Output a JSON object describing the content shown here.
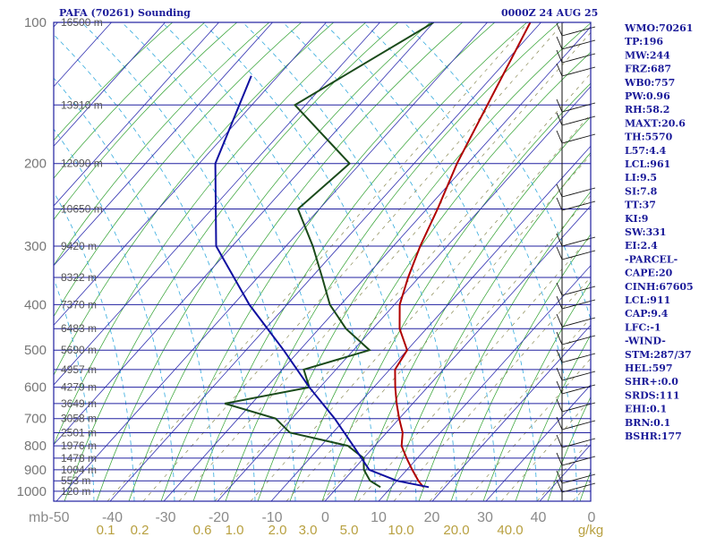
{
  "title_left": "PAFA (70261) Sounding",
  "title_right": "0000Z 24 AUG 25",
  "indices": [
    "WMO:70261",
    "TP:196",
    "MW:244",
    "FRZ:687",
    "WB0:757",
    "PW:0.96",
    "RH:58.2",
    "MAXT:20.6",
    "TH:5570",
    "L57:4.4",
    "LCL:961",
    "LI:9.5",
    "SI:7.8",
    "TT:37",
    "KI:9",
    "SW:331",
    "EI:2.4",
    "-PARCEL-",
    "CAPE:20",
    "CINH:67605",
    "LCL:911",
    "CAP:9.4",
    "LFC:-1",
    "-WIND-",
    "STM:287/37",
    "HEL:597",
    "SHR+:0.0",
    "SRDS:111",
    "EHI:0.1",
    "BRN:0.1",
    "BSHR:177"
  ],
  "chart_data": {
    "type": "line",
    "pressure_levels": [
      {
        "p": 100,
        "label": "100",
        "height": "16500 m"
      },
      {
        "p": 150,
        "label": "",
        "height": "13910 m"
      },
      {
        "p": 200,
        "label": "200",
        "height": "12090 m"
      },
      {
        "p": 250,
        "label": "",
        "height": "10650 m"
      },
      {
        "p": 300,
        "label": "300",
        "height": "9420 m"
      },
      {
        "p": 350,
        "label": "",
        "height": "8322 m"
      },
      {
        "p": 400,
        "label": "400",
        "height": "7370 m"
      },
      {
        "p": 450,
        "label": "",
        "height": "6483 m"
      },
      {
        "p": 500,
        "label": "500",
        "height": "5690 m"
      },
      {
        "p": 550,
        "label": "",
        "height": "4957 m"
      },
      {
        "p": 600,
        "label": "600",
        "height": "4279 m"
      },
      {
        "p": 650,
        "label": "",
        "height": "3649 m"
      },
      {
        "p": 700,
        "label": "700",
        "height": "3058 m"
      },
      {
        "p": 750,
        "label": "",
        "height": "2501 m"
      },
      {
        "p": 800,
        "label": "800",
        "height": "1976 m"
      },
      {
        "p": 850,
        "label": "",
        "height": "1478 m"
      },
      {
        "p": 900,
        "label": "900",
        "height": "1004 m"
      },
      {
        "p": 950,
        "label": "",
        "height": "553 m"
      },
      {
        "p": 1000,
        "label": "1000",
        "height": "120 m"
      }
    ],
    "x_unit_label": "mb",
    "temperature_ticks": [
      -50,
      -40,
      -30,
      -20,
      -10,
      0,
      10,
      20,
      30,
      40,
      0
    ],
    "mixing_ratio_labels": [
      "0.1",
      "0.2",
      "0.6",
      "1.0",
      "2.0",
      "3.0",
      "5.0",
      "10.0",
      "20.0",
      "40.0"
    ],
    "mixing_ratio_unit": "g/kg",
    "series": [
      {
        "color": "#b00000",
        "points": [
          [
            -42,
            100
          ],
          [
            -32,
            200
          ],
          [
            -28,
            250
          ],
          [
            -25,
            300
          ],
          [
            -22,
            350
          ],
          [
            -19,
            400
          ],
          [
            -15,
            450
          ],
          [
            -10,
            500
          ],
          [
            -9,
            550
          ],
          [
            -6,
            600
          ],
          [
            -3,
            650
          ],
          [
            0,
            700
          ],
          [
            3,
            750
          ],
          [
            5,
            800
          ],
          [
            8,
            850
          ],
          [
            11,
            900
          ],
          [
            14,
            950
          ],
          [
            16,
            980
          ]
        ]
      },
      {
        "color": "#1a4a1a",
        "points": [
          [
            -60,
            100
          ],
          [
            -72,
            150
          ],
          [
            -52,
            200
          ],
          [
            -54,
            250
          ],
          [
            -45,
            300
          ],
          [
            -38,
            350
          ],
          [
            -32,
            400
          ],
          [
            -25,
            450
          ],
          [
            -17,
            500
          ],
          [
            -26,
            550
          ],
          [
            -22,
            600
          ],
          [
            -35,
            650
          ],
          [
            -23,
            700
          ],
          [
            -18,
            750
          ],
          [
            -5,
            800
          ],
          [
            0,
            850
          ],
          [
            2,
            900
          ],
          [
            5,
            950
          ],
          [
            8,
            980
          ]
        ]
      },
      {
        "color": "#1010a0",
        "points": [
          [
            -85,
            130
          ],
          [
            -77,
            200
          ],
          [
            -63,
            300
          ],
          [
            -47,
            400
          ],
          [
            -33,
            500
          ],
          [
            -22,
            600
          ],
          [
            -12,
            700
          ],
          [
            -4,
            800
          ],
          [
            3,
            900
          ],
          [
            10,
            950
          ],
          [
            17,
            980
          ]
        ]
      }
    ]
  }
}
